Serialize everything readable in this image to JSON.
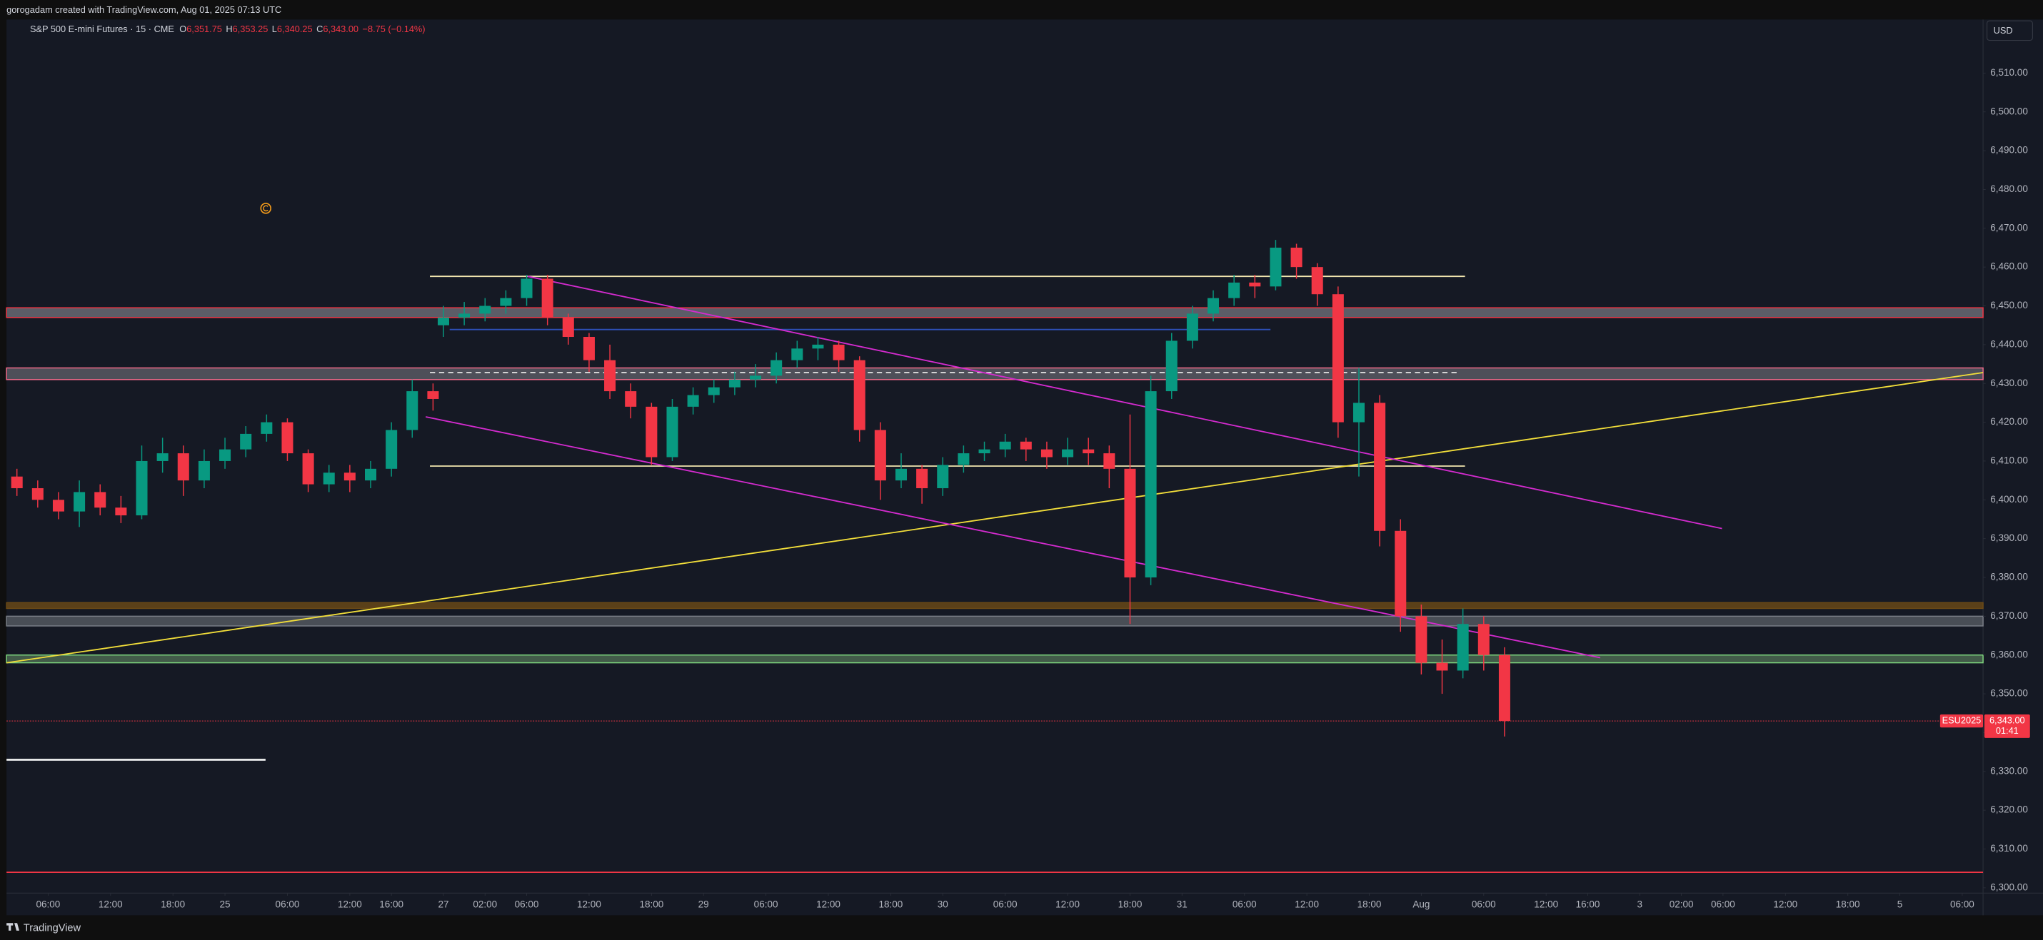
{
  "header": {
    "credit": "gorogadam created with TradingView.com, Aug 01, 2025 07:13 UTC"
  },
  "footer": {
    "brand": "TradingView"
  },
  "chart_data": {
    "type": "candlestick",
    "title": "S&P 500 E-mini Futures · 15 · CME",
    "ohlc": [
      {
        "label": "O",
        "value": "6,351.75"
      },
      {
        "label": "H",
        "value": "6,353.25"
      },
      {
        "label": "L",
        "value": "6,340.25"
      },
      {
        "label": "C",
        "value": "6,343.00"
      }
    ],
    "change": "−8.75 (−0.14%)",
    "currency": "USD",
    "up_color": "#089981",
    "down_color": "#f23645",
    "xlim": [
      2,
      192
    ],
    "ylim": [
      6294.6,
      6523.8
    ],
    "xticks": [
      {
        "value": 6,
        "label": "06:00"
      },
      {
        "value": 12,
        "label": "12:00"
      },
      {
        "value": 18,
        "label": "18:00"
      },
      {
        "value": 23,
        "label": "25"
      },
      {
        "value": 29,
        "label": "06:00"
      },
      {
        "value": 35,
        "label": "12:00"
      },
      {
        "value": 39,
        "label": "16:00"
      },
      {
        "value": 44,
        "label": "27"
      },
      {
        "value": 48,
        "label": "02:00"
      },
      {
        "value": 52,
        "label": "06:00"
      },
      {
        "value": 58,
        "label": "12:00"
      },
      {
        "value": 64,
        "label": "18:00"
      },
      {
        "value": 69,
        "label": "29"
      },
      {
        "value": 75,
        "label": "06:00"
      },
      {
        "value": 81,
        "label": "12:00"
      },
      {
        "value": 87,
        "label": "18:00"
      },
      {
        "value": 92,
        "label": "30"
      },
      {
        "value": 98,
        "label": "06:00"
      },
      {
        "value": 104,
        "label": "12:00"
      },
      {
        "value": 110,
        "label": "18:00"
      },
      {
        "value": 115,
        "label": "31"
      },
      {
        "value": 121,
        "label": "06:00"
      },
      {
        "value": 127,
        "label": "12:00"
      },
      {
        "value": 133,
        "label": "18:00"
      },
      {
        "value": 138,
        "label": "Aug"
      },
      {
        "value": 144,
        "label": "06:00"
      },
      {
        "value": 150,
        "label": "12:00"
      },
      {
        "value": 154,
        "label": "16:00"
      },
      {
        "value": 159,
        "label": "3"
      },
      {
        "value": 163,
        "label": "02:00"
      },
      {
        "value": 167,
        "label": "06:00"
      },
      {
        "value": 173,
        "label": "12:00"
      },
      {
        "value": 179,
        "label": "18:00"
      },
      {
        "value": 184,
        "label": "5"
      },
      {
        "value": 190,
        "label": "06:00"
      }
    ],
    "yticks": [
      {
        "value": 6300,
        "label": "6,300.00"
      },
      {
        "value": 6310,
        "label": "6,310.00"
      },
      {
        "value": 6320,
        "label": "6,320.00"
      },
      {
        "value": 6330,
        "label": "6,330.00"
      },
      {
        "value": 6340,
        "label": "6,340.00"
      },
      {
        "value": 6350,
        "label": "6,350.00"
      },
      {
        "value": 6360,
        "label": "6,360.00"
      },
      {
        "value": 6370,
        "label": "6,370.00"
      },
      {
        "value": 6380,
        "label": "6,380.00"
      },
      {
        "value": 6390,
        "label": "6,390.00"
      },
      {
        "value": 6400,
        "label": "6,400.00"
      },
      {
        "value": 6410,
        "label": "6,410.00"
      },
      {
        "value": 6420,
        "label": "6,420.00"
      },
      {
        "value": 6430,
        "label": "6,430.00"
      },
      {
        "value": 6440,
        "label": "6,440.00"
      },
      {
        "value": 6450,
        "label": "6,450.00"
      },
      {
        "value": 6460,
        "label": "6,460.00"
      },
      {
        "value": 6470,
        "label": "6,470.00"
      },
      {
        "value": 6480,
        "label": "6,480.00"
      },
      {
        "value": 6490,
        "label": "6,490.00"
      },
      {
        "value": 6500,
        "label": "6,500.00"
      },
      {
        "value": 6510,
        "label": "6,510.00"
      }
    ],
    "x": [
      3,
      5,
      7,
      9,
      11,
      13,
      15,
      17,
      19,
      21,
      23,
      25,
      27,
      29,
      31,
      33,
      35,
      37,
      39,
      41,
      43,
      44,
      46,
      48,
      50,
      52,
      54,
      56,
      58,
      60,
      62,
      64,
      66,
      68,
      70,
      72,
      74,
      76,
      78,
      80,
      82,
      84,
      86,
      88,
      90,
      92,
      94,
      96,
      98,
      100,
      102,
      104,
      106,
      108,
      110,
      112,
      114,
      116,
      118,
      120,
      122,
      124,
      126,
      128,
      130,
      132,
      134,
      136,
      138,
      140,
      142,
      144,
      146
    ],
    "candles": [
      [
        6406,
        6408,
        6401,
        6403
      ],
      [
        6403,
        6405,
        6398,
        6400
      ],
      [
        6400,
        6402,
        6395,
        6397
      ],
      [
        6397,
        6405,
        6393,
        6402
      ],
      [
        6402,
        6404,
        6396,
        6398
      ],
      [
        6398,
        6401,
        6394,
        6396
      ],
      [
        6396,
        6414,
        6395,
        6410
      ],
      [
        6410,
        6416,
        6407,
        6412
      ],
      [
        6412,
        6414,
        6401,
        6405
      ],
      [
        6405,
        6413,
        6403,
        6410
      ],
      [
        6410,
        6416,
        6408,
        6413
      ],
      [
        6413,
        6419,
        6411,
        6417
      ],
      [
        6417,
        6422,
        6415,
        6420
      ],
      [
        6420,
        6421,
        6410,
        6412
      ],
      [
        6412,
        6413,
        6402,
        6404
      ],
      [
        6404,
        6409,
        6402,
        6407
      ],
      [
        6407,
        6409,
        6402,
        6405
      ],
      [
        6405,
        6410,
        6403,
        6408
      ],
      [
        6408,
        6420,
        6406,
        6418
      ],
      [
        6418,
        6431,
        6416,
        6428
      ],
      [
        6428,
        6430,
        6423,
        6426
      ],
      [
        6445,
        6450,
        6442,
        6447
      ],
      [
        6447,
        6451,
        6445,
        6448
      ],
      [
        6448,
        6452,
        6446,
        6450
      ],
      [
        6450,
        6454,
        6448,
        6452
      ],
      [
        6452,
        6458,
        6450,
        6457
      ],
      [
        6457,
        6458,
        6445,
        6447
      ],
      [
        6447,
        6448,
        6440,
        6442
      ],
      [
        6442,
        6443,
        6433,
        6436
      ],
      [
        6436,
        6440,
        6426,
        6428
      ],
      [
        6428,
        6430,
        6421,
        6424
      ],
      [
        6424,
        6425,
        6409,
        6411
      ],
      [
        6411,
        6426,
        6410,
        6424
      ],
      [
        6424,
        6429,
        6422,
        6427
      ],
      [
        6427,
        6431,
        6425,
        6429
      ],
      [
        6429,
        6433,
        6427,
        6431
      ],
      [
        6431,
        6435,
        6429,
        6432
      ],
      [
        6432,
        6438,
        6430,
        6436
      ],
      [
        6436,
        6441,
        6434,
        6439
      ],
      [
        6439,
        6442,
        6436,
        6440
      ],
      [
        6440,
        6441,
        6433,
        6436
      ],
      [
        6436,
        6437,
        6415,
        6418
      ],
      [
        6418,
        6420,
        6400,
        6405
      ],
      [
        6405,
        6412,
        6403,
        6408
      ],
      [
        6408,
        6409,
        6399,
        6403
      ],
      [
        6403,
        6411,
        6401,
        6409
      ],
      [
        6409,
        6414,
        6407,
        6412
      ],
      [
        6412,
        6415,
        6410,
        6413
      ],
      [
        6413,
        6417,
        6411,
        6415
      ],
      [
        6415,
        6416,
        6410,
        6413
      ],
      [
        6413,
        6415,
        6408,
        6411
      ],
      [
        6411,
        6416,
        6409,
        6413
      ],
      [
        6413,
        6416,
        6409,
        6412
      ],
      [
        6412,
        6414,
        6403,
        6408
      ],
      [
        6408,
        6422,
        6368,
        6380
      ],
      [
        6380,
        6432,
        6378,
        6428
      ],
      [
        6428,
        6443,
        6426,
        6441
      ],
      [
        6441,
        6450,
        6439,
        6448
      ],
      [
        6448,
        6454,
        6446,
        6452
      ],
      [
        6452,
        6458,
        6450,
        6456
      ],
      [
        6456,
        6458,
        6452,
        6455
      ],
      [
        6455,
        6467,
        6454,
        6465
      ],
      [
        6465,
        6466,
        6457,
        6460
      ],
      [
        6460,
        6461,
        6450,
        6453
      ],
      [
        6453,
        6455,
        6416,
        6420
      ],
      [
        6420,
        6434,
        6406,
        6425
      ],
      [
        6425,
        6427,
        6388,
        6392
      ],
      [
        6392,
        6395,
        6366,
        6370
      ],
      [
        6370,
        6373,
        6355,
        6358
      ],
      [
        6358,
        6364,
        6350,
        6356
      ],
      [
        6356,
        6372,
        6354,
        6368
      ],
      [
        6368,
        6370,
        6356,
        6360
      ],
      [
        6360,
        6362,
        6339,
        6343
      ]
    ],
    "zones": [
      {
        "from": 6447,
        "to": 6449.5,
        "fill": "#6e6e78",
        "stroke": "#f23645"
      },
      {
        "from": 6431,
        "to": 6434,
        "fill": "#5d5d66",
        "stroke": "#f06a8a"
      },
      {
        "from": 6372,
        "to": 6373.5,
        "fill": "#6b4a16",
        "stroke": "#6b4a16"
      },
      {
        "from": 6367.5,
        "to": 6370,
        "fill": "#565b63",
        "stroke": "#7a7f87"
      },
      {
        "from": 6358,
        "to": 6360,
        "fill": "#4d6b52",
        "stroke": "#7ed77e"
      }
    ],
    "lines": [
      {
        "x1": 42.7,
        "y1": 6457.6,
        "x2": 142.2,
        "y2": 6457.6,
        "color": "#f3e7b0",
        "width": 1
      },
      {
        "x1": 42.7,
        "y1": 6408.7,
        "x2": 142.2,
        "y2": 6408.7,
        "color": "#f3e7b0",
        "width": 1
      },
      {
        "x1": 44.6,
        "y1": 6443.9,
        "x2": 123.5,
        "y2": 6443.9,
        "color": "#2e50b8",
        "width": 1
      },
      {
        "x1": 42.7,
        "y1": 6432.8,
        "x2": 141.7,
        "y2": 6432.8,
        "color": "#e6e6e6",
        "width": 1,
        "dash": true
      },
      {
        "x1": 2,
        "y1": 6358,
        "x2": 192,
        "y2": 6432.8,
        "color": "#f2de3a",
        "width": 1
      },
      {
        "x1": 52.1,
        "y1": 6457.6,
        "x2": 166.9,
        "y2": 6392.6,
        "color": "#d42bcf",
        "width": 1
      },
      {
        "x1": 42.3,
        "y1": 6421.4,
        "x2": 155.2,
        "y2": 6359.3,
        "color": "#d42bcf",
        "width": 1
      },
      {
        "x1": 2,
        "y1": 6333,
        "x2": 26.9,
        "y2": 6333,
        "color": "#ffffff",
        "width": 1.4
      },
      {
        "x1": 2,
        "y1": 6304,
        "x2": 192,
        "y2": 6304,
        "color": "#f23645",
        "width": 1
      }
    ],
    "last_price": {
      "value": 6343,
      "label": "6,343.00",
      "symbol": "ESU2025",
      "countdown": "01:41",
      "color": "#f23645"
    }
  }
}
